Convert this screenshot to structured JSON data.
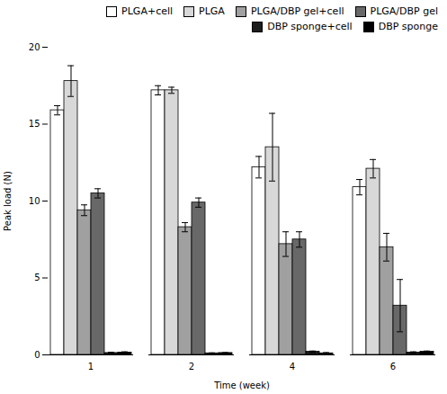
{
  "chart_data": {
    "type": "bar",
    "xlabel": "Time (week)",
    "ylabel": "Peak load (N)",
    "categories": [
      "1",
      "2",
      "4",
      "6"
    ],
    "series": [
      {
        "name": "PLGA+cell",
        "color": "#ffffff",
        "values": [
          15.9,
          17.2,
          12.2,
          10.9
        ],
        "errors": [
          0.3,
          0.3,
          0.7,
          0.5
        ]
      },
      {
        "name": "PLGA",
        "color": "#d8d8d8",
        "values": [
          17.8,
          17.2,
          13.5,
          12.1
        ],
        "errors": [
          1.0,
          0.2,
          2.2,
          0.6
        ]
      },
      {
        "name": "PLGA/DBP gel+cell",
        "color": "#a0a0a0",
        "values": [
          9.4,
          8.3,
          7.2,
          7.0
        ],
        "errors": [
          0.35,
          0.3,
          0.8,
          0.9
        ]
      },
      {
        "name": "PLGA/DBP gel",
        "color": "#686868",
        "values": [
          10.5,
          9.9,
          7.5,
          3.2
        ],
        "errors": [
          0.3,
          0.3,
          0.5,
          1.7
        ]
      },
      {
        "name": "DBP sponge+cell",
        "color": "#1c1c1c",
        "values": [
          0.12,
          0.1,
          0.2,
          0.15
        ],
        "errors": [
          0.05,
          0.03,
          0.05,
          0.05
        ]
      },
      {
        "name": "DBP sponge",
        "color": "#000000",
        "values": [
          0.15,
          0.12,
          0.1,
          0.2
        ],
        "errors": [
          0.05,
          0.03,
          0.05,
          0.05
        ]
      }
    ],
    "ylim": [
      0,
      20
    ],
    "yticks": [
      0,
      5,
      10,
      15,
      20
    ],
    "grid": false,
    "legend": "upper right"
  }
}
